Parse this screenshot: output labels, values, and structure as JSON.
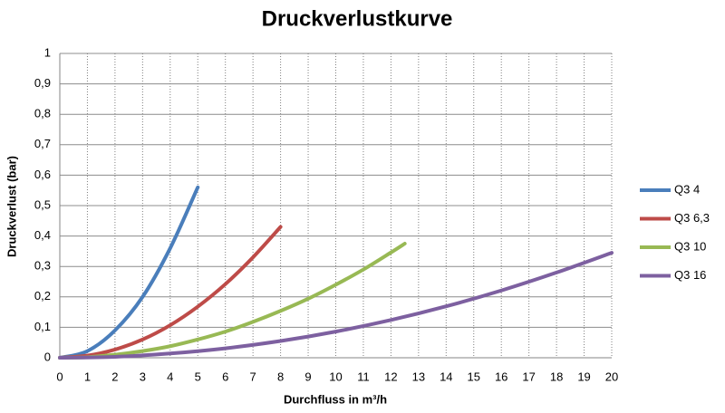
{
  "chart_data": {
    "type": "line",
    "title": "Druckverlustkurve",
    "x_label": "Durchfluss in m³/h",
    "y_label": "Druckverlust (bar)",
    "xlim": [
      0,
      20
    ],
    "xticks": [
      0,
      1,
      2,
      3,
      4,
      5,
      6,
      7,
      8,
      9,
      10,
      11,
      12,
      13,
      14,
      15,
      16,
      17,
      18,
      19,
      20
    ],
    "ylim": [
      0,
      1
    ],
    "yticks": [
      0,
      {
        "value": 0.1,
        "label": "0,1"
      },
      {
        "value": 0.2,
        "label": "0,2"
      },
      {
        "value": 0.3,
        "label": "0,3"
      },
      {
        "value": 0.4,
        "label": "0,4"
      },
      {
        "value": 0.5,
        "label": "0,5"
      },
      {
        "value": 0.6,
        "label": "0,6"
      },
      {
        "value": 0.7,
        "label": "0,7"
      },
      {
        "value": 0.8,
        "label": "0,8"
      },
      {
        "value": 0.9,
        "label": "0,9"
      },
      1
    ],
    "grid": true,
    "legend": "right",
    "series": [
      {
        "name": "Q3 4",
        "color": "#4a7ebb",
        "x": [
          0,
          1,
          2,
          3,
          4,
          5
        ],
        "values": [
          0,
          0.022,
          0.09,
          0.2,
          0.36,
          0.56
        ]
      },
      {
        "name": "Q3 6,3",
        "color": "#be4b48",
        "x": [
          0,
          1,
          2,
          3,
          4,
          5,
          6,
          7,
          8
        ],
        "values": [
          0,
          0.007,
          0.027,
          0.06,
          0.107,
          0.168,
          0.242,
          0.33,
          0.43
        ]
      },
      {
        "name": "Q3 10",
        "color": "#98b954",
        "x": [
          0,
          1,
          2,
          3,
          4,
          5,
          6,
          7,
          8,
          9,
          10,
          11,
          12,
          12.5
        ],
        "values": [
          0,
          0.002,
          0.01,
          0.022,
          0.038,
          0.06,
          0.086,
          0.118,
          0.154,
          0.194,
          0.24,
          0.29,
          0.346,
          0.375
        ]
      },
      {
        "name": "Q3 16",
        "color": "#7d60a0",
        "x": [
          0,
          2,
          4,
          6,
          8,
          10,
          12,
          14,
          16,
          18,
          20
        ],
        "values": [
          0,
          0.003,
          0.014,
          0.031,
          0.055,
          0.086,
          0.124,
          0.169,
          0.221,
          0.28,
          0.345
        ]
      }
    ]
  }
}
